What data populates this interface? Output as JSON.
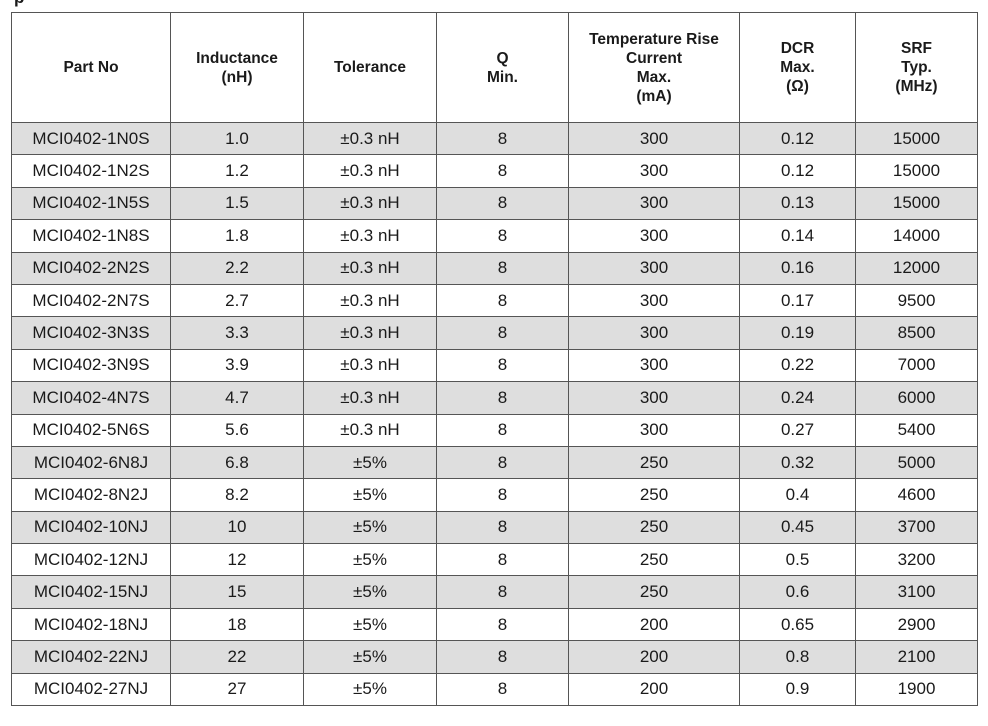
{
  "title_fragment": "p",
  "columns": [
    {
      "lines": [
        "Part No"
      ]
    },
    {
      "lines": [
        "Inductance",
        "(nH)"
      ]
    },
    {
      "lines": [
        "Tolerance"
      ]
    },
    {
      "lines": [
        "Q",
        "Min."
      ]
    },
    {
      "lines": [
        "Temperature Rise",
        "Current",
        "Max.",
        "(mA)"
      ]
    },
    {
      "lines": [
        "DCR",
        "Max.",
        "(Ω)"
      ]
    },
    {
      "lines": [
        "SRF",
        "Typ.",
        "(MHz)"
      ]
    }
  ],
  "rows": [
    [
      "MCI0402-1N0S",
      "1.0",
      "±0.3 nH",
      "8",
      "300",
      "0.12",
      "15000"
    ],
    [
      "MCI0402-1N2S",
      "1.2",
      "±0.3 nH",
      "8",
      "300",
      "0.12",
      "15000"
    ],
    [
      "MCI0402-1N5S",
      "1.5",
      "±0.3 nH",
      "8",
      "300",
      "0.13",
      "15000"
    ],
    [
      "MCI0402-1N8S",
      "1.8",
      "±0.3 nH",
      "8",
      "300",
      "0.14",
      "14000"
    ],
    [
      "MCI0402-2N2S",
      "2.2",
      "±0.3 nH",
      "8",
      "300",
      "0.16",
      "12000"
    ],
    [
      "MCI0402-2N7S",
      "2.7",
      "±0.3 nH",
      "8",
      "300",
      "0.17",
      "9500"
    ],
    [
      "MCI0402-3N3S",
      "3.3",
      "±0.3 nH",
      "8",
      "300",
      "0.19",
      "8500"
    ],
    [
      "MCI0402-3N9S",
      "3.9",
      "±0.3 nH",
      "8",
      "300",
      "0.22",
      "7000"
    ],
    [
      "MCI0402-4N7S",
      "4.7",
      "±0.3 nH",
      "8",
      "300",
      "0.24",
      "6000"
    ],
    [
      "MCI0402-5N6S",
      "5.6",
      "±0.3 nH",
      "8",
      "300",
      "0.27",
      "5400"
    ],
    [
      "MCI0402-6N8J",
      "6.8",
      "±5%",
      "8",
      "250",
      "0.32",
      "5000"
    ],
    [
      "MCI0402-8N2J",
      "8.2",
      "±5%",
      "8",
      "250",
      "0.4",
      "4600"
    ],
    [
      "MCI0402-10NJ",
      "10",
      "±5%",
      "8",
      "250",
      "0.45",
      "3700"
    ],
    [
      "MCI0402-12NJ",
      "12",
      "±5%",
      "8",
      "250",
      "0.5",
      "3200"
    ],
    [
      "MCI0402-15NJ",
      "15",
      "±5%",
      "8",
      "250",
      "0.6",
      "3100"
    ],
    [
      "MCI0402-18NJ",
      "18",
      "±5%",
      "8",
      "200",
      "0.65",
      "2900"
    ],
    [
      "MCI0402-22NJ",
      "22",
      "±5%",
      "8",
      "200",
      "0.8",
      "2100"
    ],
    [
      "MCI0402-27NJ",
      "27",
      "±5%",
      "8",
      "200",
      "0.9",
      "1900"
    ]
  ],
  "colors": {
    "shaded_row": "#dedede",
    "border": "#555555",
    "text": "#1a1a1a"
  }
}
